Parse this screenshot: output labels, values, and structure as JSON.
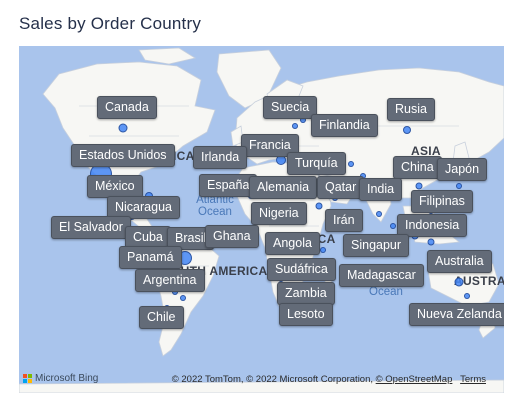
{
  "title": "Sales by Order Country",
  "countries": [
    {
      "name": "Canada"
    },
    {
      "name": "Suecia"
    },
    {
      "name": "Rusia"
    },
    {
      "name": "Finlandia"
    },
    {
      "name": "Estados Unidos"
    },
    {
      "name": "Francia"
    },
    {
      "name": "Irlanda"
    },
    {
      "name": "China"
    },
    {
      "name": "Japón"
    },
    {
      "name": "Turquía"
    },
    {
      "name": "México"
    },
    {
      "name": "España"
    },
    {
      "name": "Alemania"
    },
    {
      "name": "Qatar"
    },
    {
      "name": "India"
    },
    {
      "name": "Nicaragua"
    },
    {
      "name": "Filipinas"
    },
    {
      "name": "El Salvador"
    },
    {
      "name": "Nigeria"
    },
    {
      "name": "Irán"
    },
    {
      "name": "Indonesia"
    },
    {
      "name": "Cuba"
    },
    {
      "name": "Brasil"
    },
    {
      "name": "Ghana"
    },
    {
      "name": "Angola"
    },
    {
      "name": "Singapur"
    },
    {
      "name": "Panamá"
    },
    {
      "name": "Australia"
    },
    {
      "name": "Argentina"
    },
    {
      "name": "Sudáfrica"
    },
    {
      "name": "Madagascar"
    },
    {
      "name": "Zambia"
    },
    {
      "name": "Chile"
    },
    {
      "name": "Lesoto"
    },
    {
      "name": "Nueva Zelanda"
    }
  ],
  "regions": {
    "asia": "ASIA",
    "north_america_partial": "RICA",
    "south_america": "OUTH AMERICA",
    "australia_partial": "AUSTRALI",
    "africa_partial": "ICA"
  },
  "oceans": {
    "atlantic": "Atlantic Ocean",
    "indian_partial": "Ocean"
  },
  "footer": {
    "brand": "Microsoft Bing",
    "attribution": "© 2022 TomTom, © 2022 Microsoft Corporation, ",
    "osm_link": "© OpenStreetMap",
    "terms_link": "Terms"
  },
  "colors": {
    "water": "#a9c4ec",
    "land": "#f7f7f4",
    "bubble": "#4285f4",
    "tag_bg": "#636b78"
  }
}
